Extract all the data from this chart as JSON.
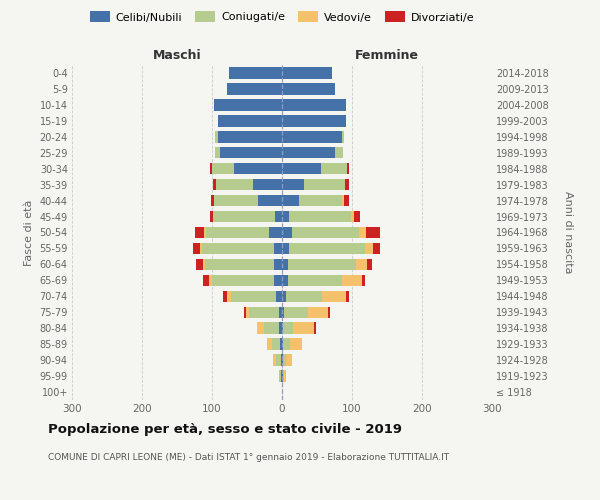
{
  "age_groups": [
    "100+",
    "95-99",
    "90-94",
    "85-89",
    "80-84",
    "75-79",
    "70-74",
    "65-69",
    "60-64",
    "55-59",
    "50-54",
    "45-49",
    "40-44",
    "35-39",
    "30-34",
    "25-29",
    "20-24",
    "15-19",
    "10-14",
    "5-9",
    "0-4"
  ],
  "birth_years": [
    "≤ 1918",
    "1919-1923",
    "1924-1928",
    "1929-1933",
    "1934-1938",
    "1939-1943",
    "1944-1948",
    "1949-1953",
    "1954-1958",
    "1959-1963",
    "1964-1968",
    "1969-1973",
    "1974-1978",
    "1979-1983",
    "1984-1988",
    "1989-1993",
    "1994-1998",
    "1999-2003",
    "2004-2008",
    "2009-2013",
    "2014-2018"
  ],
  "maschi": {
    "celibi": [
      0,
      2,
      2,
      3,
      4,
      5,
      8,
      12,
      12,
      12,
      18,
      10,
      35,
      42,
      68,
      88,
      92,
      92,
      97,
      78,
      76
    ],
    "coniugati": [
      0,
      2,
      6,
      12,
      22,
      42,
      65,
      88,
      98,
      102,
      90,
      88,
      62,
      52,
      32,
      8,
      4,
      0,
      0,
      0,
      0
    ],
    "vedovi": [
      0,
      1,
      5,
      6,
      10,
      5,
      5,
      5,
      3,
      3,
      3,
      0,
      0,
      0,
      0,
      0,
      0,
      0,
      0,
      0,
      0
    ],
    "divorziati": [
      0,
      0,
      0,
      0,
      0,
      3,
      6,
      8,
      10,
      10,
      14,
      5,
      5,
      5,
      3,
      0,
      0,
      0,
      0,
      0,
      0
    ]
  },
  "femmine": {
    "nubili": [
      0,
      1,
      1,
      2,
      2,
      3,
      5,
      8,
      8,
      10,
      14,
      10,
      24,
      32,
      55,
      75,
      85,
      92,
      92,
      76,
      72
    ],
    "coniugate": [
      0,
      2,
      5,
      10,
      14,
      34,
      52,
      78,
      98,
      108,
      96,
      88,
      62,
      58,
      38,
      12,
      4,
      0,
      0,
      0,
      0
    ],
    "vedove": [
      0,
      2,
      8,
      16,
      30,
      28,
      34,
      28,
      15,
      12,
      10,
      5,
      2,
      0,
      0,
      0,
      0,
      0,
      0,
      0,
      0
    ],
    "divorziate": [
      0,
      0,
      0,
      0,
      2,
      4,
      5,
      5,
      8,
      10,
      20,
      8,
      8,
      5,
      3,
      0,
      0,
      0,
      0,
      0,
      0
    ]
  },
  "colors": {
    "celibi_nubili": "#4472a8",
    "coniugati": "#b5cc8e",
    "vedovi": "#f5c26b",
    "divorziati": "#cc2222"
  },
  "xlim": 300,
  "title": "Popolazione per età, sesso e stato civile - 2019",
  "subtitle": "COMUNE DI CAPRI LEONE (ME) - Dati ISTAT 1° gennaio 2019 - Elaborazione TUTTITALIA.IT",
  "ylabel_left": "Fasce di età",
  "ylabel_right": "Anni di nascita",
  "xlabel_left": "Maschi",
  "xlabel_right": "Femmine",
  "legend_labels": [
    "Celibi/Nubili",
    "Coniugati/e",
    "Vedovi/e",
    "Divorziati/e"
  ],
  "background_color": "#f5f5f2",
  "bar_height": 0.72
}
